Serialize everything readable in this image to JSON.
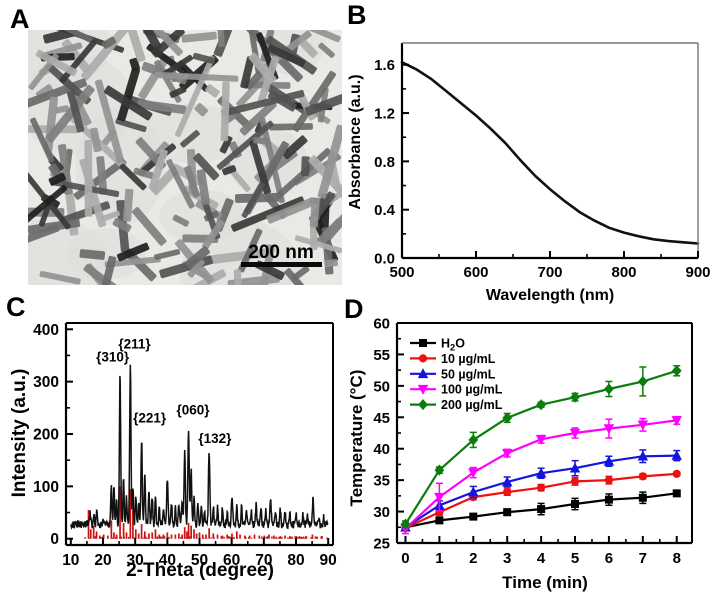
{
  "panels": {
    "a": {
      "letter": "A",
      "scale_bar_label": "200 nm",
      "description": "TEM image of nanorods"
    },
    "b": {
      "letter": "B"
    },
    "c": {
      "letter": "C"
    },
    "d": {
      "letter": "D"
    }
  },
  "chart_data": [
    {
      "id": "absorbance-spectrum",
      "panel": "B",
      "type": "line",
      "xlabel": "Wavelength (nm)",
      "ylabel": "Absorbance (a.u.)",
      "xlim": [
        500,
        900
      ],
      "ylim": [
        0,
        1.78
      ],
      "xticks": [
        500,
        600,
        700,
        800,
        900
      ],
      "yticks": [
        "0.0",
        "0.4",
        "0.8",
        "1.2",
        "1.6"
      ],
      "ytick_values": [
        0,
        0.4,
        0.8,
        1.2,
        1.6
      ],
      "x_minor": [
        550,
        650,
        750,
        850
      ],
      "y_minor": [
        0.2,
        0.6,
        1.0,
        1.4
      ],
      "grid": false,
      "series": [
        {
          "name": "absorbance",
          "color": "#111111",
          "x": [
            500,
            520,
            540,
            560,
            580,
            600,
            620,
            640,
            660,
            680,
            700,
            720,
            740,
            760,
            780,
            800,
            820,
            840,
            860,
            880,
            900
          ],
          "y": [
            1.62,
            1.56,
            1.48,
            1.38,
            1.28,
            1.18,
            1.07,
            0.95,
            0.81,
            0.68,
            0.57,
            0.47,
            0.38,
            0.31,
            0.25,
            0.21,
            0.18,
            0.155,
            0.14,
            0.13,
            0.12
          ]
        }
      ]
    },
    {
      "id": "xrd-pattern",
      "panel": "C",
      "type": "line",
      "xlabel": "2-Theta (degree)",
      "ylabel": "Intensity (a.u.)",
      "xlim": [
        10,
        90
      ],
      "ylim": [
        0,
        400
      ],
      "xticks": [
        10,
        20,
        30,
        40,
        50,
        60,
        70,
        80,
        90
      ],
      "yticks": [
        0,
        100,
        200,
        300,
        400
      ],
      "x_minor": [
        15,
        25,
        35,
        45,
        55,
        65,
        75,
        85
      ],
      "y_minor": [
        50,
        150,
        250,
        350
      ],
      "grid": false,
      "peak_labels": [
        {
          "text": "{310}",
          "x": 23.0,
          "y": 338
        },
        {
          "text": "{211}",
          "x": 29.8,
          "y": 363
        },
        {
          "text": "{221}",
          "x": 34.5,
          "y": 222
        },
        {
          "text": "{060}",
          "x": 48.0,
          "y": 237
        },
        {
          "text": "{132}",
          "x": 54.8,
          "y": 183
        }
      ],
      "sample_trace": {
        "name": "sample",
        "color": "#111111",
        "baseline": 20,
        "noise_amplitude": 14,
        "peaks": [
          [
            16.0,
            22,
            0.25
          ],
          [
            17.2,
            18,
            0.2
          ],
          [
            18.1,
            30,
            0.25
          ],
          [
            20.0,
            10,
            0.2
          ],
          [
            22.6,
            75,
            0.25
          ],
          [
            23.4,
            75,
            0.25
          ],
          [
            24.2,
            55,
            0.22
          ],
          [
            25.3,
            290,
            0.28
          ],
          [
            26.4,
            90,
            0.25
          ],
          [
            27.3,
            55,
            0.22
          ],
          [
            28.5,
            310,
            0.28
          ],
          [
            29.3,
            75,
            0.25
          ],
          [
            30.2,
            55,
            0.25
          ],
          [
            31.1,
            45,
            0.22
          ],
          [
            32.0,
            165,
            0.28
          ],
          [
            33.0,
            100,
            0.25
          ],
          [
            34.3,
            60,
            0.25
          ],
          [
            35.3,
            55,
            0.25
          ],
          [
            36.3,
            55,
            0.25
          ],
          [
            37.5,
            30,
            0.25
          ],
          [
            38.8,
            28,
            0.25
          ],
          [
            40.0,
            88,
            0.3
          ],
          [
            41.3,
            40,
            0.25
          ],
          [
            42.5,
            38,
            0.25
          ],
          [
            43.6,
            38,
            0.25
          ],
          [
            44.6,
            45,
            0.25
          ],
          [
            45.4,
            140,
            0.28
          ],
          [
            46.6,
            185,
            0.3
          ],
          [
            47.4,
            105,
            0.26
          ],
          [
            48.3,
            50,
            0.25
          ],
          [
            49.5,
            38,
            0.25
          ],
          [
            50.6,
            32,
            0.25
          ],
          [
            51.5,
            28,
            0.22
          ],
          [
            53.0,
            140,
            0.3
          ],
          [
            54.3,
            38,
            0.25
          ],
          [
            55.6,
            32,
            0.25
          ],
          [
            57.1,
            28,
            0.25
          ],
          [
            58.6,
            22,
            0.25
          ],
          [
            60.1,
            52,
            0.28
          ],
          [
            61.6,
            32,
            0.25
          ],
          [
            63.1,
            32,
            0.25
          ],
          [
            64.6,
            32,
            0.25
          ],
          [
            66.1,
            28,
            0.25
          ],
          [
            67.6,
            38,
            0.25
          ],
          [
            69.1,
            32,
            0.25
          ],
          [
            70.6,
            28,
            0.25
          ],
          [
            72.1,
            48,
            0.28
          ],
          [
            73.6,
            28,
            0.25
          ],
          [
            75.1,
            28,
            0.25
          ],
          [
            76.6,
            22,
            0.25
          ],
          [
            78.1,
            22,
            0.25
          ],
          [
            80.1,
            18,
            0.25
          ],
          [
            82.1,
            18,
            0.25
          ],
          [
            83.6,
            18,
            0.25
          ],
          [
            85.3,
            52,
            0.28
          ],
          [
            87.1,
            14,
            0.22
          ],
          [
            88.6,
            14,
            0.22
          ]
        ]
      },
      "reference_bars": {
        "name": "reference",
        "color": "#cc1111",
        "bars": [
          [
            15.5,
            55
          ],
          [
            16.2,
            18
          ],
          [
            17.1,
            25
          ],
          [
            18.0,
            14
          ],
          [
            19.0,
            6
          ],
          [
            20.2,
            8
          ],
          [
            21.5,
            6
          ],
          [
            22.6,
            35
          ],
          [
            23.4,
            12
          ],
          [
            24.2,
            8
          ],
          [
            25.3,
            100
          ],
          [
            26.4,
            30
          ],
          [
            27.3,
            12
          ],
          [
            28.5,
            95
          ],
          [
            29.3,
            60
          ],
          [
            30.2,
            18
          ],
          [
            31.1,
            10
          ],
          [
            32.0,
            28
          ],
          [
            33.0,
            14
          ],
          [
            34.3,
            10
          ],
          [
            35.3,
            12
          ],
          [
            36.3,
            18
          ],
          [
            37.5,
            8
          ],
          [
            38.8,
            8
          ],
          [
            40.0,
            12
          ],
          [
            41.3,
            8
          ],
          [
            42.5,
            8
          ],
          [
            43.6,
            10
          ],
          [
            44.6,
            8
          ],
          [
            45.4,
            22
          ],
          [
            46.1,
            14
          ],
          [
            46.6,
            30
          ],
          [
            47.4,
            25
          ],
          [
            48.3,
            18
          ],
          [
            49.1,
            10
          ],
          [
            50.0,
            12
          ],
          [
            51.0,
            8
          ],
          [
            52.0,
            8
          ],
          [
            53.0,
            20
          ],
          [
            54.3,
            10
          ],
          [
            55.6,
            8
          ],
          [
            57.1,
            6
          ],
          [
            58.6,
            8
          ],
          [
            60.1,
            10
          ],
          [
            61.6,
            14
          ],
          [
            62.6,
            8
          ],
          [
            64.1,
            6
          ],
          [
            65.6,
            6
          ],
          [
            67.1,
            8
          ],
          [
            68.6,
            6
          ],
          [
            70.1,
            6
          ],
          [
            71.6,
            8
          ],
          [
            73.1,
            6
          ],
          [
            75.1,
            5
          ],
          [
            76.6,
            6
          ],
          [
            78.1,
            5
          ],
          [
            80.1,
            5
          ],
          [
            81.6,
            4
          ],
          [
            83.1,
            5
          ],
          [
            85.1,
            8
          ],
          [
            86.6,
            4
          ],
          [
            88.1,
            5
          ]
        ]
      }
    },
    {
      "id": "photothermal-heating",
      "panel": "D",
      "type": "line-scatter",
      "xlabel": "Time (min)",
      "ylabel": "Temperature (°C)",
      "xlim": [
        0,
        8
      ],
      "ylim": [
        25,
        60
      ],
      "xticks": [
        0,
        1,
        2,
        3,
        4,
        5,
        6,
        7,
        8
      ],
      "yticks": [
        25,
        30,
        35,
        40,
        45,
        50,
        55,
        60
      ],
      "x_minor": [
        0.5,
        1.5,
        2.5,
        3.5,
        4.5,
        5.5,
        6.5,
        7.5
      ],
      "y_minor": [
        27.5,
        32.5,
        37.5,
        42.5,
        47.5,
        52.5,
        57.5
      ],
      "grid": false,
      "legend_position": "top-left",
      "x": [
        0,
        1,
        2,
        3,
        4,
        5,
        6,
        7,
        8
      ],
      "series": [
        {
          "name": "H₂O",
          "marker": "square",
          "color": "#000000",
          "y": [
            27.5,
            28.6,
            29.2,
            29.9,
            30.4,
            31.2,
            31.9,
            32.2,
            32.9
          ],
          "err": [
            0.3,
            0.3,
            0.3,
            0.5,
            0.9,
            0.9,
            0.9,
            0.9,
            0.4
          ]
        },
        {
          "name": "10 µg/mL",
          "marker": "circle",
          "color": "#ee1111",
          "y": [
            27.4,
            29.9,
            32.3,
            33.1,
            33.8,
            34.8,
            35.0,
            35.6,
            36.0
          ],
          "err": [
            0.3,
            0.5,
            0.4,
            0.5,
            0.5,
            0.6,
            0.6,
            0.4,
            0.3
          ]
        },
        {
          "name": "50 µg/mL",
          "marker": "triangle-up",
          "color": "#1414dd",
          "y": [
            27.5,
            31.0,
            33.1,
            34.7,
            36.1,
            36.9,
            38.0,
            38.8,
            38.9
          ],
          "err": [
            0.4,
            0.7,
            0.9,
            0.8,
            0.8,
            1.2,
            0.8,
            1.0,
            0.8
          ]
        },
        {
          "name": "100 µg/mL",
          "marker": "triangle-down",
          "color": "#ff00ff",
          "y": [
            27.3,
            32.3,
            36.2,
            39.3,
            41.5,
            42.5,
            43.2,
            43.8,
            44.5
          ],
          "err": [
            0.8,
            2.2,
            0.8,
            0.6,
            0.6,
            0.8,
            1.5,
            1.0,
            0.6
          ]
        },
        {
          "name": "200 µg/mL",
          "marker": "diamond",
          "color": "#0a7d0a",
          "y": [
            28.0,
            36.6,
            41.4,
            44.9,
            47.0,
            48.2,
            49.5,
            50.7,
            52.4
          ],
          "err": [
            0.5,
            0.5,
            1.2,
            0.7,
            0.4,
            0.6,
            1.2,
            2.3,
            0.8
          ]
        }
      ]
    }
  ]
}
